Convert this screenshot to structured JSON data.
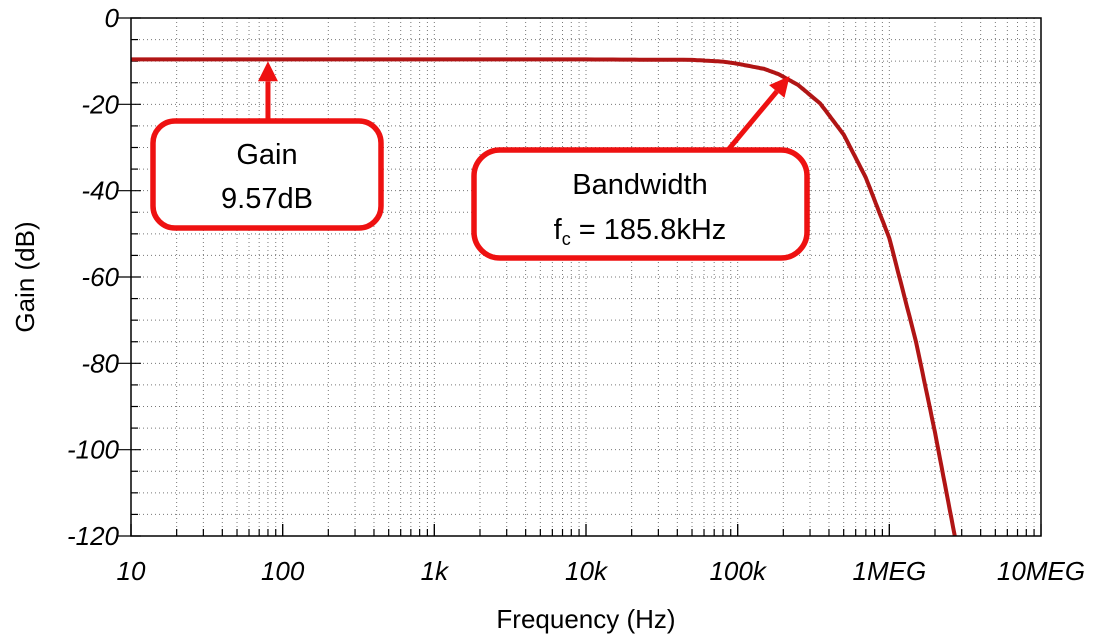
{
  "chart_data": {
    "type": "line",
    "xlabel": "Frequency (Hz)",
    "ylabel": "Gain (dB)",
    "xscale": "log",
    "xlim": [
      10,
      10000000
    ],
    "ylim": [
      -120,
      0
    ],
    "grid": true,
    "x_tick_values": [
      10,
      100,
      1000,
      10000,
      100000,
      1000000,
      10000000
    ],
    "x_tick_labels": [
      "10",
      "100",
      "1k",
      "10k",
      "100k",
      "1MEG",
      "10MEG"
    ],
    "y_tick_values": [
      0,
      -20,
      -40,
      -60,
      -80,
      -100,
      -120
    ],
    "y_tick_labels": [
      "0",
      "-20",
      "-40",
      "-60",
      "-80",
      "-100",
      "-120"
    ],
    "series": [
      {
        "color": "#b01515",
        "x": [
          10,
          1000,
          10000,
          50000,
          80000,
          100000,
          150000,
          185800,
          250000,
          350000,
          500000,
          700000,
          1000000,
          1500000,
          2000000,
          2700000
        ],
        "y": [
          -9.6,
          -9.6,
          -9.6,
          -9.7,
          -10.1,
          -10.6,
          -11.8,
          -13.0,
          -15.5,
          -19.8,
          -27.0,
          -37.0,
          -51.0,
          -75.0,
          -96.0,
          -120.0
        ]
      }
    ],
    "annotations": [
      {
        "id": "gain",
        "lines": [
          "Gain",
          "9.57dB"
        ],
        "arrow_target": {
          "x": 80,
          "y": -9.57
        }
      },
      {
        "id": "bandwidth",
        "lines": [
          "Bandwidth",
          "f",
          "c",
          " = 185.8kHz"
        ],
        "arrow_target": {
          "x": 220000,
          "y": -13.0
        }
      }
    ],
    "annotation_color": "#ee1111"
  }
}
